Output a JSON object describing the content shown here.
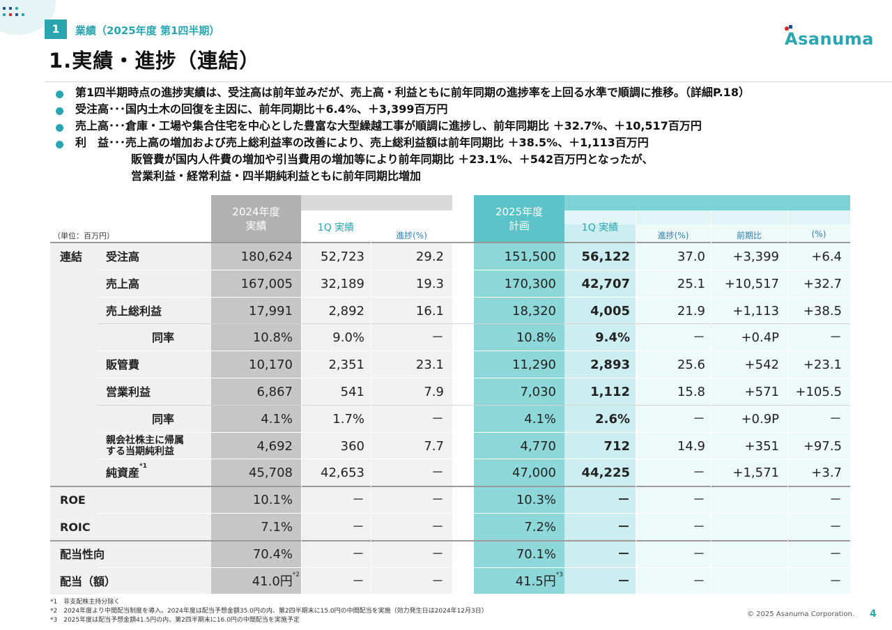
{
  "section": {
    "number": "1",
    "label": "業績（2025年度 第1四半期）"
  },
  "title": "1.実績・進捗（連結）",
  "logo": {
    "text": "Asanuma"
  },
  "bullets": [
    {
      "lines": [
        "第1四半期時点の進捗実績は、受注高は前年並みだが、売上高・利益ともに前年同期の進捗率を上回る水準で順調に推移。（詳細P.18）"
      ]
    },
    {
      "lines": [
        "受注高･･･国内土木の回復を主因に、前年同期比＋6.4%、＋3,399百万円"
      ]
    },
    {
      "lines": [
        "売上高･･･倉庫・工場や集合住宅を中心とした豊富な大型繰越工事が順調に進捗し、前年同期比 ＋32.7%、＋10,517百万円"
      ]
    },
    {
      "lines": [
        "利　益･･･売上高の増加および売上総利益率の改善により、売上総利益額は前年同期比 ＋38.5%、＋1,113百万円",
        "販管費が国内人件費の増加や引当費用の増加等により前年同期比 ＋23.1%、＋542百万円となったが、",
        "営業利益・経常利益・四半期純利益ともに前年同期比増加"
      ]
    }
  ],
  "table": {
    "unit": "（単位：百万円）",
    "headers": {
      "fy2024": [
        "2024年度",
        "実績"
      ],
      "q1_2024": "1Q 実績",
      "progress_2024": "進捗(%)",
      "fy2025": [
        "2025年度",
        "計画"
      ],
      "q1_2025": "1Q 実績",
      "progress_2025": "進捗(%)",
      "yoy": "前期比",
      "yoy_pct": "(%)"
    },
    "rows": [
      {
        "group": "連結",
        "label": "受注高",
        "indent": 0,
        "fy2024": "180,624",
        "q1_2024": "52,723",
        "prog2024": "29.2",
        "fy2025": "151,500",
        "q1_2025": "56,122",
        "prog2025": "37.0",
        "yoy": "+3,399",
        "yoy_pct": "+6.4"
      },
      {
        "group": "",
        "label": "売上高",
        "indent": 0,
        "fy2024": "167,005",
        "q1_2024": "32,189",
        "prog2024": "19.3",
        "fy2025": "170,300",
        "q1_2025": "42,707",
        "prog2025": "25.1",
        "yoy": "+10,517",
        "yoy_pct": "+32.7"
      },
      {
        "group": "",
        "label": "売上総利益",
        "indent": 0,
        "fy2024": "17,991",
        "q1_2024": "2,892",
        "prog2024": "16.1",
        "fy2025": "18,320",
        "q1_2025": "4,005",
        "prog2025": "21.9",
        "yoy": "+1,113",
        "yoy_pct": "+38.5"
      },
      {
        "group": "",
        "label": "同率",
        "indent": 1,
        "fy2024": "10.8%",
        "q1_2024": "9.0%",
        "prog2024": "－",
        "fy2025": "10.8%",
        "q1_2025": "9.4%",
        "prog2025": "－",
        "yoy": "+0.4P",
        "yoy_pct": "－"
      },
      {
        "group": "",
        "label": "販管費",
        "indent": 0,
        "fy2024": "10,170",
        "q1_2024": "2,351",
        "prog2024": "23.1",
        "fy2025": "11,290",
        "q1_2025": "2,893",
        "prog2025": "25.6",
        "yoy": "+542",
        "yoy_pct": "+23.1"
      },
      {
        "group": "",
        "label": "営業利益",
        "indent": 0,
        "fy2024": "6,867",
        "q1_2024": "541",
        "prog2024": "7.9",
        "fy2025": "7,030",
        "q1_2025": "1,112",
        "prog2025": "15.8",
        "yoy": "+571",
        "yoy_pct": "+105.5"
      },
      {
        "group": "",
        "label": "同率",
        "indent": 1,
        "fy2024": "4.1%",
        "q1_2024": "1.7%",
        "prog2024": "－",
        "fy2025": "4.1%",
        "q1_2025": "2.6%",
        "prog2025": "－",
        "yoy": "+0.9P",
        "yoy_pct": "－"
      },
      {
        "group": "",
        "label": "親会社株主に帰属\nする当期純利益",
        "indent": 0,
        "small": true,
        "fy2024": "4,692",
        "q1_2024": "360",
        "prog2024": "7.7",
        "fy2025": "4,770",
        "q1_2025": "712",
        "prog2025": "14.9",
        "yoy": "+351",
        "yoy_pct": "+97.5"
      },
      {
        "group": "",
        "label": "純資産",
        "label_sup": "*1",
        "indent": 0,
        "fy2024": "45,708",
        "q1_2024": "42,653",
        "prog2024": "－",
        "fy2025": "47,000",
        "q1_2025": "44,225",
        "prog2025": "－",
        "yoy": "+1,571",
        "yoy_pct": "+3.7"
      },
      {
        "group": "ROE",
        "label": "",
        "indent": 0,
        "fy2024": "10.1%",
        "q1_2024": "－",
        "prog2024": "－",
        "fy2025": "10.3%",
        "q1_2025": "－",
        "prog2025": "－",
        "yoy": "",
        "yoy_pct": "－"
      },
      {
        "group": "ROIC",
        "label": "",
        "indent": 0,
        "fy2024": "7.1%",
        "q1_2024": "－",
        "prog2024": "－",
        "fy2025": "7.2%",
        "q1_2025": "－",
        "prog2025": "－",
        "yoy": "",
        "yoy_pct": "－"
      },
      {
        "group": "配当性向",
        "label": "",
        "indent": 0,
        "fy2024": "70.4%",
        "q1_2024": "－",
        "prog2024": "－",
        "fy2025": "70.1%",
        "q1_2025": "－",
        "prog2025": "－",
        "yoy": "",
        "yoy_pct": "－"
      },
      {
        "group": "配当（額）",
        "label": "",
        "indent": 0,
        "fy2024": "41.0円",
        "fy2024_sup": "*2",
        "q1_2024": "－",
        "prog2024": "－",
        "fy2025": "41.5円",
        "fy2025_sup": "*3",
        "q1_2025": "－",
        "prog2025": "－",
        "yoy": "",
        "yoy_pct": "－"
      }
    ]
  },
  "footnotes": [
    "*1　非支配株主持分除く",
    "*2　2024年度より中間配当制度を導入。2024年度は配当予想金額35.0円の内、第2四半期末に15.0円の中間配当を実施（効力発生日は2024年12月3日）",
    "*3　2025年度は配当予想金額41.5円の内、第2四半期末に16.0円の中間配当を実施予定"
  ],
  "copyright": "© 2025 Asanuma Corporation.",
  "page_number": "4",
  "colors": {
    "accent": "#2aa5b0",
    "gray_band": "#c6c6c6",
    "teal_band": "#8dd7d9"
  }
}
